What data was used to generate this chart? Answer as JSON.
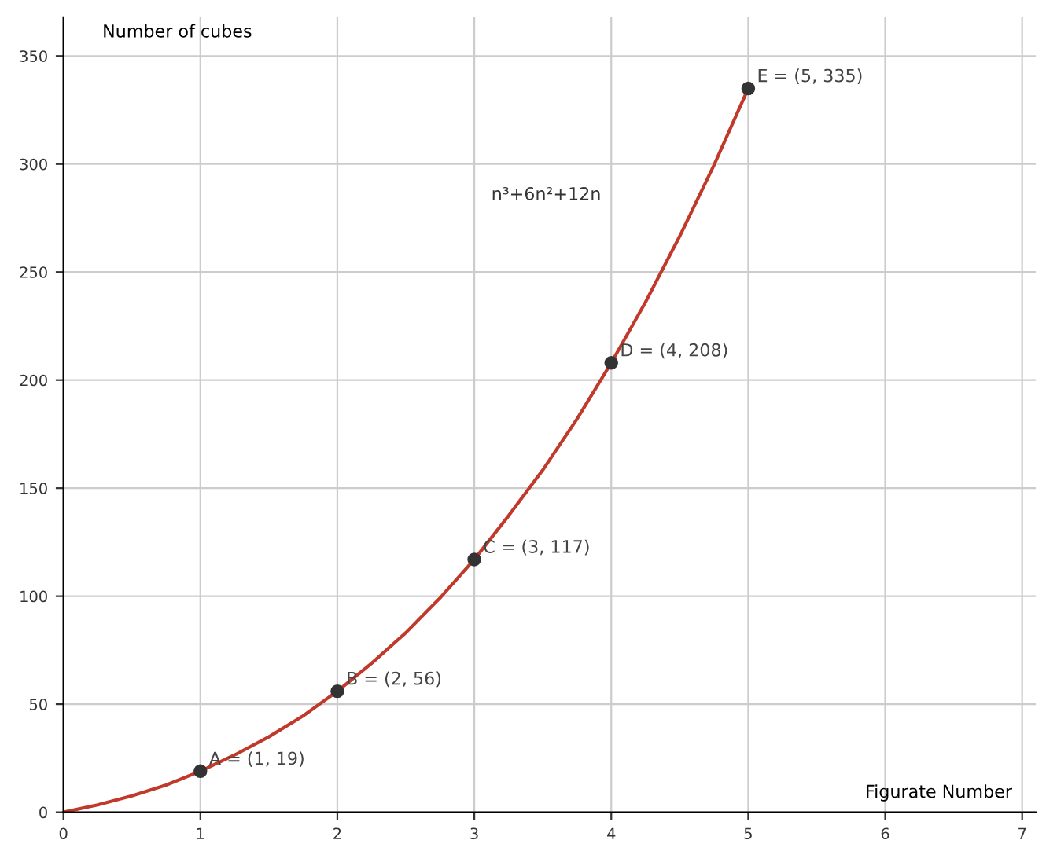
{
  "chart_data": {
    "type": "line",
    "xlabel": "Figurate Number",
    "ylabel": "Number of cubes",
    "series": [
      {
        "color": "#c0392b",
        "x": [
          0,
          0.25,
          0.5,
          0.75,
          1,
          1.25,
          1.5,
          1.75,
          2,
          2.25,
          2.5,
          2.75,
          3,
          3.25,
          3.5,
          3.75,
          4,
          4.25,
          4.5,
          4.75,
          5
        ],
        "values": [
          0,
          3.4,
          7.6,
          12.6,
          19,
          26.5,
          34.9,
          44.6,
          56,
          68.9,
          83.1,
          99.2,
          117,
          137.2,
          158.4,
          182,
          208,
          236.1,
          266.6,
          299.5,
          335
        ],
        "marker": "none"
      },
      {
        "type": "scatter",
        "color": "#333333",
        "x": [
          1,
          2,
          3,
          4,
          5
        ],
        "values": [
          19,
          56,
          117,
          208,
          335
        ],
        "marker": "circle"
      }
    ],
    "annotations": [
      {
        "text": "A = (1, 19)",
        "x": 1,
        "y": 19
      },
      {
        "text": "B = (2, 56)",
        "x": 2,
        "y": 56
      },
      {
        "text": "C = (3, 117)",
        "x": 3,
        "y": 117
      },
      {
        "text": "D = (4, 208)",
        "x": 4,
        "y": 208
      },
      {
        "text": "E = (5, 335)",
        "x": 5,
        "y": 335
      },
      "n³+6n²+12n"
    ],
    "xlim": [
      0,
      7.1
    ],
    "ylim": [
      0,
      368
    ],
    "xticks": [
      0,
      1,
      2,
      3,
      4,
      5,
      6,
      7
    ],
    "yticks": [
      0,
      50,
      100,
      150,
      200,
      250,
      300,
      350
    ],
    "grid": true,
    "legend": false
  }
}
